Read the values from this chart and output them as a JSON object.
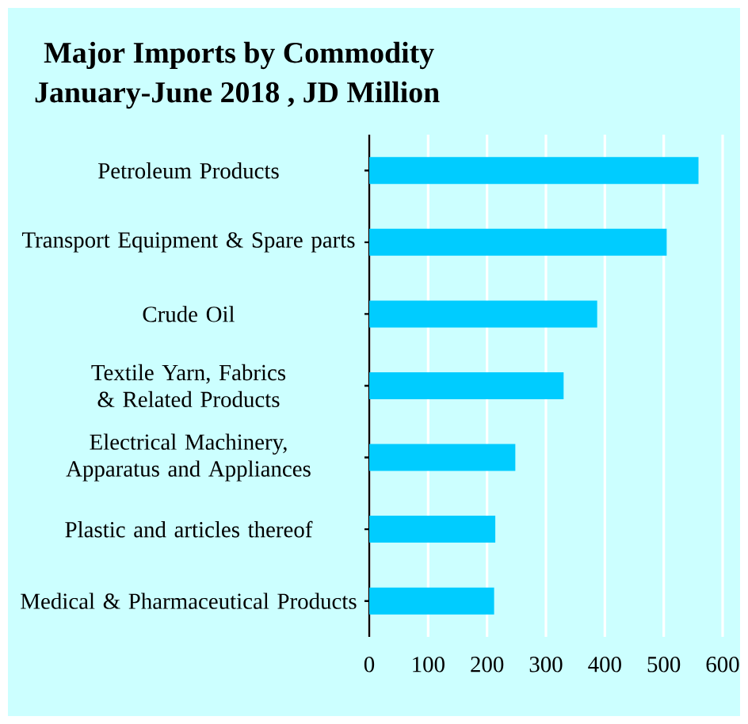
{
  "chart_data": {
    "type": "bar",
    "orientation": "horizontal",
    "title": "Major Imports by Commodity",
    "subtitle": "January-June 2018 , JD Million",
    "categories": [
      "Petroleum Products",
      "Transport Equipment & Spare parts",
      "Crude Oil",
      "Textile Yarn, Fabrics & Related Products",
      "Electrical Machinery, Apparatus and Appliances",
      "Plastic and articles thereof",
      "Medical & Pharmaceutical Products"
    ],
    "values": [
      559,
      505,
      387,
      330,
      248,
      214,
      212
    ],
    "color": "#00ccff",
    "xlim": [
      0,
      600
    ],
    "xticks": [
      0,
      100,
      200,
      300,
      400,
      500,
      600
    ],
    "grid": "x"
  }
}
